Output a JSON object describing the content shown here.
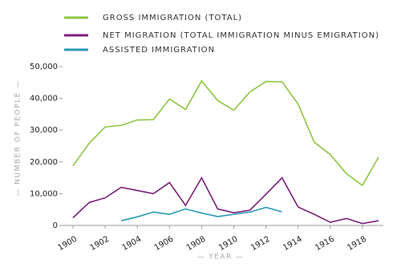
{
  "chart_data": {
    "type": "line",
    "x": [
      1900,
      1901,
      1902,
      1903,
      1904,
      1905,
      1906,
      1907,
      1908,
      1909,
      1910,
      1911,
      1912,
      1913,
      1914,
      1915,
      1916,
      1917,
      1918,
      1919
    ],
    "series": [
      {
        "name": "GROSS IMMIGRATION (TOTAL)",
        "color": "#8dc63f",
        "values": [
          18800,
          25800,
          31000,
          31500,
          33200,
          33300,
          39800,
          36500,
          45500,
          39300,
          36300,
          42000,
          45300,
          45200,
          38200,
          26200,
          22300,
          16300,
          12600,
          21500
        ]
      },
      {
        "name": "NET MIGRATION (TOTAL IMMIGRATION MINUS EMIGRATION)",
        "color": "#7b1f7b",
        "values": [
          2400,
          7200,
          8700,
          12000,
          11000,
          10000,
          13500,
          6300,
          15000,
          5200,
          4000,
          4800,
          9800,
          15000,
          5800,
          3500,
          1000,
          2200,
          600,
          1500
        ]
      },
      {
        "name": "ASSISTED IMMIGRATION",
        "color": "#2a9bb5",
        "values": [
          null,
          null,
          null,
          1500,
          2700,
          4200,
          3500,
          5200,
          3900,
          2800,
          3500,
          4200,
          5700,
          4300,
          null,
          null,
          null,
          null,
          null,
          null
        ]
      }
    ],
    "xlim": [
      1899.9,
      1919.3
    ],
    "xticks": [
      1900,
      1902,
      1904,
      1906,
      1908,
      1910,
      1912,
      1914,
      1916,
      1918
    ],
    "ylim": [
      0,
      50000
    ],
    "yticks": [
      {
        "value": 0,
        "label": "0"
      },
      {
        "value": 10000,
        "label": "10,000"
      },
      {
        "value": 20000,
        "label": "20,000"
      },
      {
        "value": 30000,
        "label": "30,000"
      },
      {
        "value": 40000,
        "label": "40,000"
      },
      {
        "value": 50000,
        "label": "50,000"
      }
    ],
    "xlabel": "— YEAR —",
    "ylabel": "— NUMBER OF PEOPLE —"
  }
}
